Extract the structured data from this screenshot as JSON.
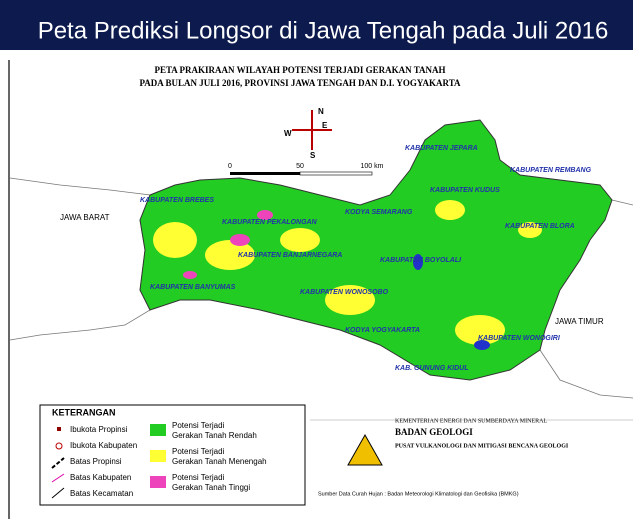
{
  "header": {
    "title": "Peta Prediksi Longsor di Jawa Tengah pada Juli 2016"
  },
  "map": {
    "title_lines": [
      "PETA PRAKIRAAN WILAYAH POTENSI TERJADI GERAKAN TANAH",
      "PADA BULAN JULI 2016, PROVINSI JAWA TENGAH DAN D.I. YOGYAKARTA"
    ],
    "compass": {
      "north": "N",
      "south": "S",
      "east": "E",
      "west": "W"
    },
    "scale": {
      "start": "0",
      "middle": "50",
      "end": "100 km"
    },
    "neighbors": {
      "west": "JAWA BARAT",
      "east": "JAWA TIMUR"
    },
    "regions": [
      "KABUPATEN JEPARA",
      "KABUPATEN REMBANG",
      "KABUPATEN KUDUS",
      "KODYA SEMARANG",
      "KABUPATEN BREBES",
      "KABUPATEN PEKALONGAN",
      "KABUPATEN BANJARNEGARA",
      "KABUPATEN BOYOLALI",
      "KABUPATEN BLORA",
      "KABUPATEN BANYUMAS",
      "KABUPATEN WONOSOBO",
      "KODYA YOGYAKARTA",
      "KABUPATEN WONOGIRI",
      "KAB. GUNUNG KIDUL"
    ]
  },
  "legend": {
    "title": "KETERANGAN",
    "symbols": [
      "Ibukota Propinsi",
      "Ibukota Kabupaten",
      "Batas Propinsi",
      "Batas Kabupaten",
      "Batas Kecamatan"
    ],
    "zones": [
      {
        "lines": [
          "Potensi Terjadi",
          "Gerakan Tanah Rendah"
        ],
        "color": "#22cc22"
      },
      {
        "lines": [
          "Potensi Terjadi",
          "Gerakan Tanah Menengah"
        ],
        "color": "#ffff33"
      },
      {
        "lines": [
          "Potensi Terjadi",
          "Gerakan Tanah Tinggi"
        ],
        "color": "#ee44bb"
      }
    ]
  },
  "agency": {
    "ministry": "KEMENTERIAN ENERGI DAN SUMBERDAYA MINERAL",
    "name": "BADAN GEOLOGI",
    "unit": "PUSAT VULKANOLOGI DAN MITIGASI BENCANA GEOLOGI",
    "source": "Sumber Data Curah Hujan : Badan Meteorologi Klimatologi dan Geofisika (BMKG)"
  }
}
